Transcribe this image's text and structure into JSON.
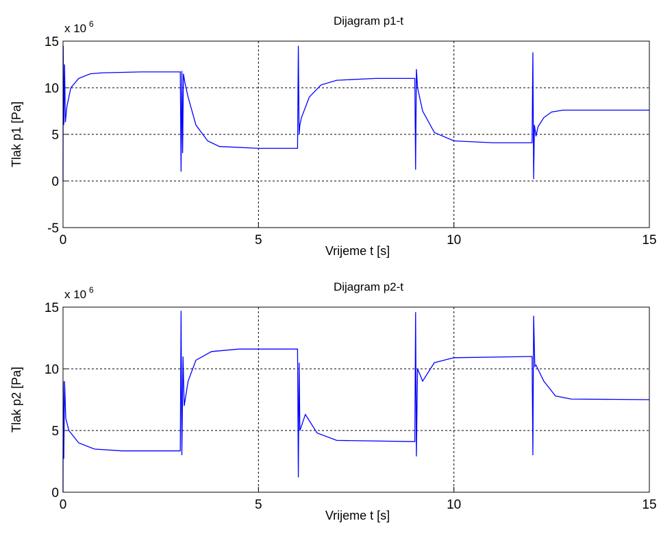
{
  "chart_data": [
    {
      "type": "line",
      "title": "Dijagram p1-t",
      "xlabel": "Vrijeme t [s]",
      "ylabel": "Tlak p1 [Pa]",
      "y_scale_label": "x 10",
      "y_scale_exponent": "6",
      "xlim": [
        0,
        15
      ],
      "xticks": [
        0,
        5,
        10,
        15
      ],
      "ylim": [
        -5,
        15
      ],
      "yticks": [
        -5,
        0,
        5,
        10,
        15
      ],
      "grid": true,
      "color": "#0000ff",
      "x": [
        0,
        0.005,
        0.02,
        0.04,
        0.06,
        0.1,
        0.2,
        0.4,
        0.7,
        1,
        2,
        3,
        3.02,
        3.04,
        3.06,
        3.08,
        3.12,
        3.2,
        3.4,
        3.7,
        4,
        5,
        6,
        6.02,
        6.04,
        6.06,
        6.1,
        6.3,
        6.6,
        7,
        8,
        9,
        9.02,
        9.04,
        9.07,
        9.2,
        9.5,
        10,
        11,
        12,
        12.02,
        12.04,
        12.06,
        12.1,
        12.15,
        12.3,
        12.5,
        12.8,
        15
      ],
      "y": [
        0,
        14.5,
        6,
        12.5,
        6.3,
        8,
        10,
        11,
        11.5,
        11.6,
        11.7,
        11.7,
        1,
        11.8,
        3,
        11.5,
        10.5,
        9,
        6,
        4.3,
        3.7,
        3.5,
        3.5,
        14.5,
        5,
        6,
        6.8,
        9,
        10.3,
        10.8,
        11,
        11,
        1.2,
        12,
        10,
        7.5,
        5.2,
        4.3,
        4.1,
        4.1,
        13.8,
        0.2,
        6,
        4.8,
        5.8,
        6.8,
        7.4,
        7.6,
        7.6
      ]
    },
    {
      "type": "line",
      "title": "Dijagram p2-t",
      "xlabel": "Vrijeme t [s]",
      "ylabel": "Tlak p2 [Pa]",
      "y_scale_label": "x 10",
      "y_scale_exponent": "6",
      "xlim": [
        0,
        15
      ],
      "xticks": [
        0,
        5,
        10,
        15
      ],
      "ylim": [
        0,
        15
      ],
      "yticks": [
        0,
        5,
        10,
        15
      ],
      "grid": true,
      "color": "#0000ff",
      "x": [
        0,
        0.005,
        0.02,
        0.04,
        0.07,
        0.15,
        0.4,
        0.8,
        1.5,
        3,
        3.02,
        3.04,
        3.07,
        3.1,
        3.2,
        3.4,
        3.8,
        4.5,
        6,
        6.02,
        6.04,
        6.06,
        6.2,
        6.5,
        7,
        9,
        9.02,
        9.04,
        9.07,
        9.2,
        9.5,
        10,
        12,
        12.02,
        12.04,
        12.07,
        12.1,
        12.3,
        12.6,
        13,
        15
      ],
      "y": [
        0,
        9,
        2.7,
        9,
        6,
        5,
        4,
        3.5,
        3.35,
        3.35,
        14.7,
        3,
        11,
        7,
        9,
        10.7,
        11.4,
        11.6,
        11.6,
        1.2,
        10.5,
        5,
        6.3,
        4.8,
        4.2,
        4.1,
        14.6,
        2.9,
        10,
        9,
        10.5,
        10.9,
        11,
        3,
        14.3,
        10.2,
        10.3,
        9,
        7.8,
        7.55,
        7.5
      ]
    }
  ]
}
